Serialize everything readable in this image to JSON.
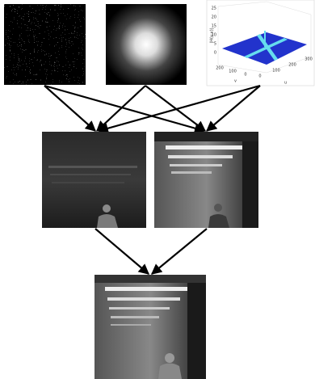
{
  "plot": {
    "z_label": "|H(u,v)|",
    "z_ticks": [
      "25",
      "20",
      "15",
      "10",
      "5",
      "0"
    ],
    "u_ticks": [
      "0",
      "100",
      "200",
      "300"
    ],
    "v_ticks": [
      "200",
      "100",
      "0"
    ],
    "u_label": "u",
    "v_label": "v"
  }
}
